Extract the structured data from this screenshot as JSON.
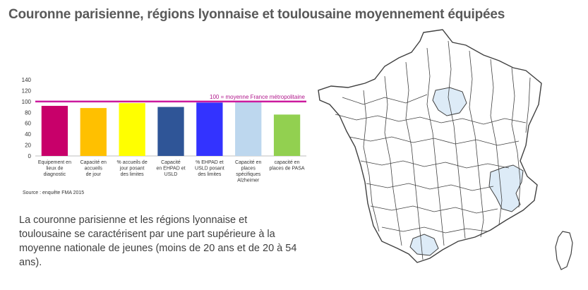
{
  "title": "Couronne parisienne, régions lyonnaise et toulousaine moyennement équipées",
  "source": "Source : enquête FMA 2015",
  "description": "La couronne parisienne et les régions lyonnaise et toulousaine se caractérisent par une part supérieure à la moyenne nationale de jeunes (moins de 20 ans et de 20 à 54 ans).",
  "chart_data": {
    "type": "bar",
    "ylim": [
      0,
      140
    ],
    "yticks": [
      0,
      20,
      40,
      60,
      80,
      100,
      120,
      140
    ],
    "reference_line": {
      "value": 100,
      "label": "100 = moyenne France métropolitaine",
      "color": "#cc1a9e"
    },
    "categories": [
      [
        "Equipement en",
        "lieux de",
        "diagnostic"
      ],
      [
        "Capacité en",
        "accueils",
        "de jour"
      ],
      [
        "% accueils de",
        "jour posant",
        "des limites"
      ],
      [
        "Capacité",
        "en EHPAD et",
        "USLD"
      ],
      [
        "% EHPAD et",
        "USLD posant",
        "des limites"
      ],
      [
        "Capacité en",
        "places",
        "spécifiques",
        "Alzheimer"
      ],
      [
        "capacité en",
        "places de PASA"
      ]
    ],
    "values": [
      92,
      88,
      97,
      90,
      98,
      99,
      76
    ],
    "colors": [
      "#c8006a",
      "#ffc000",
      "#ffff00",
      "#2f5597",
      "#3333ff",
      "#bdd7ee",
      "#92d050"
    ]
  },
  "map": {
    "highlight_color": "#ddebf7",
    "regions_highlighted": [
      "paris-region",
      "lyon-region",
      "toulouse-region"
    ]
  }
}
